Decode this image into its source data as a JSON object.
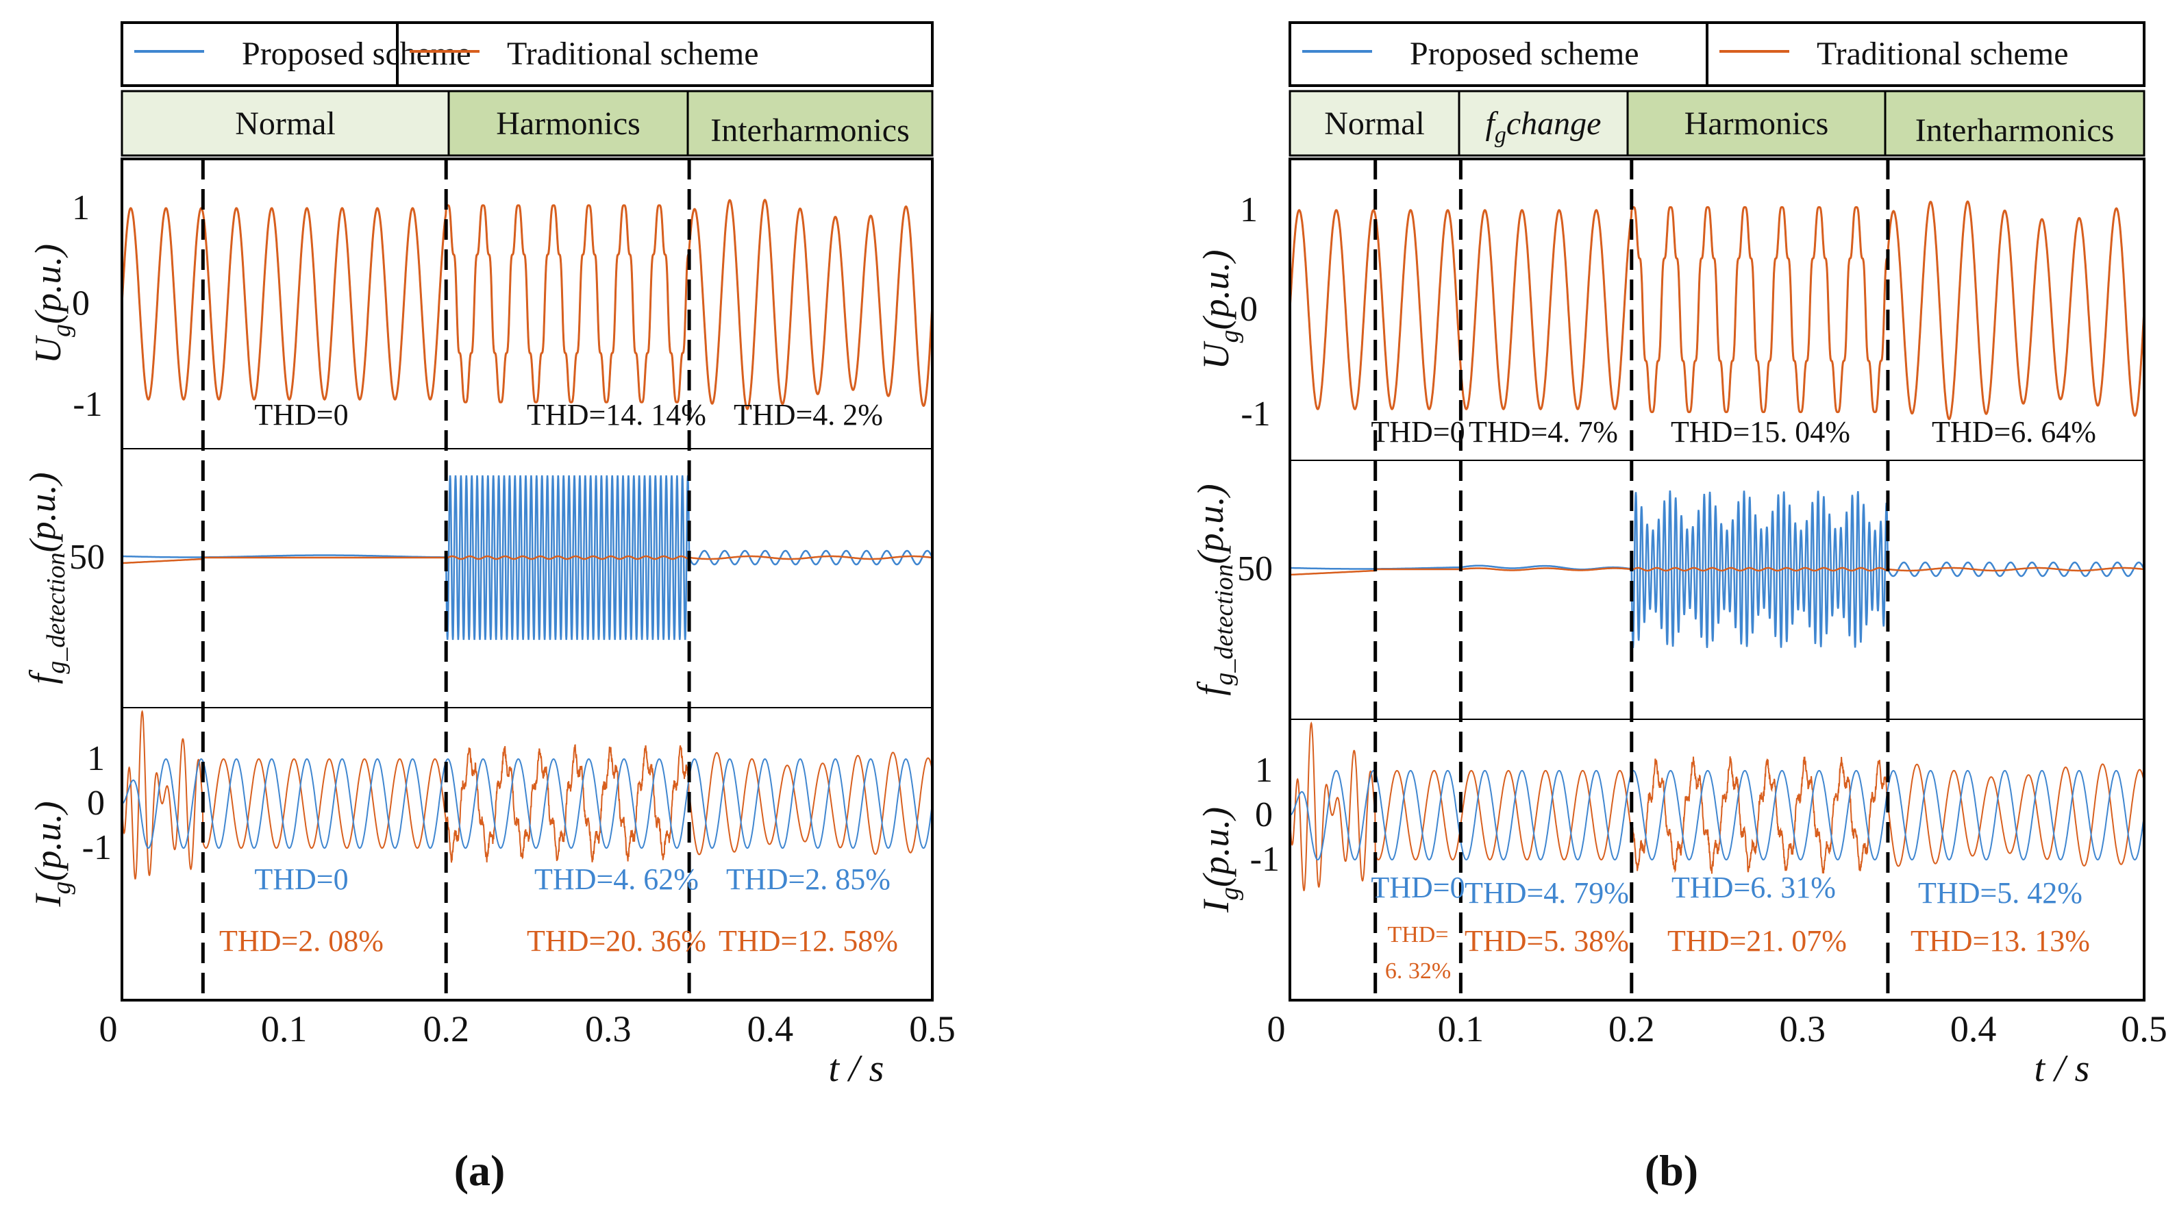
{
  "figure": {
    "legend": {
      "proposed": "Proposed scheme",
      "traditional": "Traditional scheme"
    },
    "colors": {
      "proposed": "#3f86d0",
      "traditional": "#d85f1e",
      "phase_light": "#eaf1df",
      "phase_dark": "#c9dcaa"
    }
  },
  "chart_data": [
    {
      "type": "line",
      "panel_label": "(a)",
      "phases": [
        "Normal",
        "Harmonics",
        "Interharmonics"
      ],
      "x": {
        "label": "t / s",
        "range": [
          0,
          0.5
        ],
        "ticks": [
          "0",
          "0.1",
          "0.2",
          "0.3",
          "0.4",
          "0.5"
        ]
      },
      "boundaries": [
        0.05,
        0.2,
        0.35
      ],
      "series": [
        {
          "name": "Proposed scheme"
        },
        {
          "name": "Traditional scheme"
        }
      ],
      "subplots": [
        {
          "id": "ug",
          "ylabel_main": "U",
          "ylabel_sub": "g",
          "ylabel_unit": "(p.u.)",
          "yticks": [
            "1",
            "0",
            "-1"
          ],
          "annotations": [
            {
              "text": "THD=0",
              "color": "black"
            },
            {
              "text": "THD=14. 14%",
              "color": "black"
            },
            {
              "text": "THD=4. 2%",
              "color": "black"
            }
          ]
        },
        {
          "id": "fg",
          "ylabel_main": "f",
          "ylabel_sub": "g_detection",
          "ylabel_unit": "(p.u.)",
          "yticks": [
            "50"
          ],
          "annotations": []
        },
        {
          "id": "ig",
          "ylabel_main": "I",
          "ylabel_sub": "g",
          "ylabel_unit": "(p.u.)",
          "yticks": [
            "1",
            "0",
            "-1"
          ],
          "annotations": [
            {
              "text": "THD=0",
              "color": "proposed"
            },
            {
              "text": "THD=4. 62%",
              "color": "proposed"
            },
            {
              "text": "THD=2. 85%",
              "color": "proposed"
            },
            {
              "text": "THD=2. 08%",
              "color": "traditional"
            },
            {
              "text": "THD=20. 36%",
              "color": "traditional"
            },
            {
              "text": "THD=12. 58%",
              "color": "traditional"
            }
          ]
        }
      ]
    },
    {
      "type": "line",
      "panel_label": "(b)",
      "phases": [
        "Normal",
        "f_g change",
        "Harmonics",
        "Interharmonics"
      ],
      "phase_fg_main": "f",
      "phase_fg_sub": "g",
      "phase_fg_rest": "change",
      "x": {
        "label": "t / s",
        "range": [
          0,
          0.5
        ],
        "ticks": [
          "0",
          "0.1",
          "0.2",
          "0.3",
          "0.4",
          "0.5"
        ]
      },
      "boundaries": [
        0.05,
        0.1,
        0.2,
        0.35
      ],
      "series": [
        {
          "name": "Proposed scheme"
        },
        {
          "name": "Traditional scheme"
        }
      ],
      "subplots": [
        {
          "id": "ug",
          "ylabel_main": "U",
          "ylabel_sub": "g",
          "ylabel_unit": "(p.u.)",
          "yticks": [
            "1",
            "0",
            "-1"
          ],
          "annotations": [
            {
              "text": "THD=0",
              "color": "black"
            },
            {
              "text": "THD=4. 7%",
              "color": "black"
            },
            {
              "text": "THD=15. 04%",
              "color": "black"
            },
            {
              "text": "THD=6. 64%",
              "color": "black"
            }
          ]
        },
        {
          "id": "fg",
          "ylabel_main": "f",
          "ylabel_sub": "g_detection",
          "ylabel_unit": "(p.u.)",
          "yticks": [
            "50"
          ],
          "annotations": []
        },
        {
          "id": "ig",
          "ylabel_main": "I",
          "ylabel_sub": "g",
          "ylabel_unit": "(p.u.)",
          "yticks": [
            "1",
            "0",
            "-1"
          ],
          "annotations": [
            {
              "text": "THD=0",
              "color": "proposed"
            },
            {
              "text": "THD=4. 79%",
              "color": "proposed"
            },
            {
              "text": "THD=6. 31%",
              "color": "proposed"
            },
            {
              "text": "THD=5. 42%",
              "color": "proposed"
            },
            {
              "text": "THD=",
              "color": "traditional"
            },
            {
              "text": "6. 32%",
              "color": "traditional"
            },
            {
              "text": "THD=5. 38%",
              "color": "traditional"
            },
            {
              "text": "THD=21. 07%",
              "color": "traditional"
            },
            {
              "text": "THD=13. 13%",
              "color": "traditional"
            }
          ]
        }
      ]
    }
  ]
}
